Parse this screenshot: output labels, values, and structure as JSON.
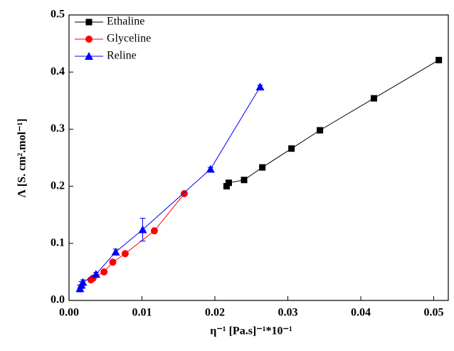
{
  "chart_data": {
    "type": "scatter",
    "x_label": "η⁻¹ [Pa.s]⁻¹*10⁻¹",
    "y_label": "Λ [S. cm².mol⁻¹]",
    "xlim": [
      0,
      0.052
    ],
    "ylim": [
      0,
      0.5
    ],
    "xticks": [
      {
        "value": 0,
        "label": "0.00"
      },
      0.01,
      0.02,
      0.03,
      0.04,
      0.05
    ],
    "yticks": [
      {
        "value": 0,
        "label": "0.0"
      },
      0.1,
      0.2,
      0.3,
      0.4,
      0.5
    ],
    "legend": "top-left",
    "series": [
      {
        "name": "Ethaline",
        "color": "#000000",
        "marker": "square",
        "x": [
          0.0216,
          0.0219,
          0.024,
          0.0265,
          0.0305,
          0.0344,
          0.0418,
          0.0507
        ],
        "values": [
          0.2,
          0.206,
          0.211,
          0.233,
          0.266,
          0.298,
          0.354,
          0.421
        ]
      },
      {
        "name": "Glyceline",
        "color": "#ff0000",
        "marker": "circle",
        "x": [
          0.003,
          0.0033,
          0.0048,
          0.006,
          0.0077,
          0.0117,
          0.0158
        ],
        "values": [
          0.036,
          0.039,
          0.05,
          0.067,
          0.082,
          0.122,
          0.187
        ]
      },
      {
        "name": "Reline",
        "color": "#0000ff",
        "marker": "triangle",
        "x": [
          0.0015,
          0.0017,
          0.0019,
          0.0037,
          0.0064,
          0.0101,
          0.0194,
          0.0262
        ],
        "values": [
          0.021,
          0.027,
          0.032,
          0.046,
          0.085,
          0.124,
          0.23,
          0.374
        ],
        "errors": [
          0.006,
          0.006,
          0.004,
          0.003,
          0.005,
          0.02,
          0.003,
          0.003
        ]
      }
    ]
  }
}
